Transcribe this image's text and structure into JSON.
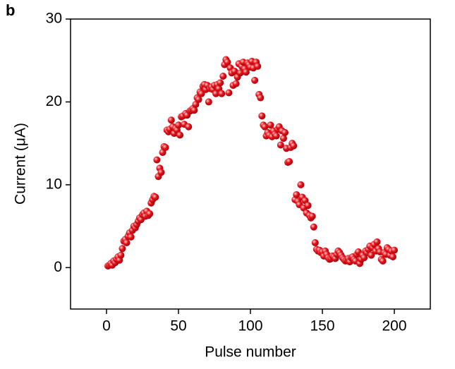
{
  "chart_data": {
    "type": "scatter",
    "panel_label": "b",
    "xlabel": "Pulse number",
    "ylabel": "Current (μA)",
    "color": "#e8141c",
    "xlim": [
      -25,
      225
    ],
    "xticks": [
      0,
      50,
      100,
      150,
      200
    ],
    "ylim": [
      -5,
      30
    ],
    "yticks": [
      0,
      10,
      20,
      30
    ],
    "x": [
      1,
      2,
      3,
      4,
      5,
      6,
      7,
      8,
      9,
      10,
      11,
      12,
      13,
      14,
      15,
      16,
      17,
      18,
      19,
      20,
      21,
      22,
      23,
      24,
      25,
      26,
      27,
      28,
      29,
      30,
      31,
      32,
      33,
      34,
      35,
      36,
      37,
      38,
      39,
      40,
      41,
      42,
      43,
      44,
      45,
      46,
      47,
      48,
      49,
      50,
      51,
      52,
      53,
      54,
      55,
      56,
      57,
      58,
      59,
      60,
      61,
      62,
      63,
      64,
      65,
      66,
      67,
      68,
      69,
      70,
      71,
      72,
      73,
      74,
      75,
      76,
      77,
      78,
      79,
      80,
      81,
      82,
      83,
      84,
      85,
      86,
      87,
      88,
      89,
      90,
      91,
      92,
      93,
      94,
      95,
      96,
      97,
      98,
      99,
      100,
      101,
      102,
      103,
      104,
      105,
      106,
      107,
      108,
      109,
      110,
      111,
      112,
      113,
      114,
      115,
      116,
      117,
      118,
      119,
      120,
      121,
      122,
      123,
      124,
      125,
      126,
      127,
      128,
      129,
      130,
      131,
      132,
      133,
      134,
      135,
      136,
      137,
      138,
      139,
      140,
      141,
      142,
      143,
      144,
      145,
      146,
      147,
      148,
      149,
      150,
      151,
      152,
      153,
      154,
      155,
      156,
      157,
      158,
      159,
      160,
      161,
      162,
      163,
      164,
      165,
      166,
      167,
      168,
      169,
      170,
      171,
      172,
      173,
      174,
      175,
      176,
      177,
      178,
      179,
      180,
      181,
      182,
      183,
      184,
      185,
      186,
      187,
      188,
      189,
      190,
      191,
      192,
      193,
      194,
      195,
      196,
      197,
      198,
      199,
      200
    ],
    "values": [
      0.2,
      0.3,
      0.5,
      0.3,
      0.8,
      0.6,
      1.0,
      1.3,
      0.9,
      1.5,
      2.3,
      3.2,
      3.4,
      3.0,
      3.8,
      4.2,
      3.7,
      4.5,
      5.0,
      4.8,
      5.2,
      5.6,
      6.0,
      5.8,
      6.4,
      6.6,
      6.2,
      6.8,
      6.3,
      6.5,
      7.8,
      8.2,
      8.6,
      8.5,
      13.0,
      11.0,
      12.0,
      11.5,
      13.9,
      14.6,
      14.5,
      16.6,
      16.4,
      16.7,
      17.8,
      17.0,
      16.2,
      16.8,
      16.6,
      17.2,
      16.0,
      18.2,
      18.3,
      17.3,
      18.6,
      18.4,
      17.0,
      18.9,
      19.0,
      19.2,
      19.0,
      19.7,
      20.5,
      20.3,
      21.2,
      21.0,
      21.9,
      22.1,
      21.5,
      22.0,
      20.0,
      21.6,
      21.8,
      21.5,
      22.0,
      21.0,
      22.1,
      21.6,
      22.3,
      21.0,
      23.1,
      24.5,
      25.1,
      24.8,
      21.1,
      24.1,
      23.5,
      22.0,
      23.7,
      22.2,
      23.0,
      24.6,
      23.5,
      24.3,
      24.8,
      24.0,
      23.6,
      24.7,
      24.5,
      24.2,
      24.9,
      24.1,
      22.6,
      24.8,
      24.3,
      20.9,
      20.5,
      18.3,
      17.2,
      17.0,
      15.9,
      16.3,
      16.0,
      17.2,
      15.8,
      16.5,
      16.1,
      15.9,
      16.7,
      17.0,
      14.8,
      16.5,
      15.6,
      16.3,
      14.4,
      12.7,
      12.8,
      14.5,
      15.0,
      14.7,
      8.2,
      8.8,
      8.0,
      7.6,
      10.0,
      8.5,
      7.2,
      8.1,
      6.6,
      7.5,
      6.3,
      6.0,
      6.2,
      4.9,
      3.0,
      2.2,
      2.0,
      2.1,
      1.8,
      1.9,
      1.4,
      2.0,
      1.6,
      1.2,
      1.0,
      1.1,
      1.4,
      1.3,
      1.1,
      1.6,
      2.0,
      1.8,
      1.5,
      1.2,
      1.0,
      0.8,
      0.9,
      1.1,
      0.7,
      1.2,
      1.3,
      1.0,
      0.8,
      1.6,
      1.9,
      0.5,
      1.0,
      1.5,
      1.2,
      2.0,
      1.8,
      2.2,
      2.6,
      1.5,
      2.4,
      2.8,
      2.0,
      3.1,
      2.3,
      1.9,
      1.0,
      0.8,
      1.8,
      1.6,
      2.4,
      2.2,
      1.5,
      2.0,
      1.3,
      2.1
    ]
  }
}
